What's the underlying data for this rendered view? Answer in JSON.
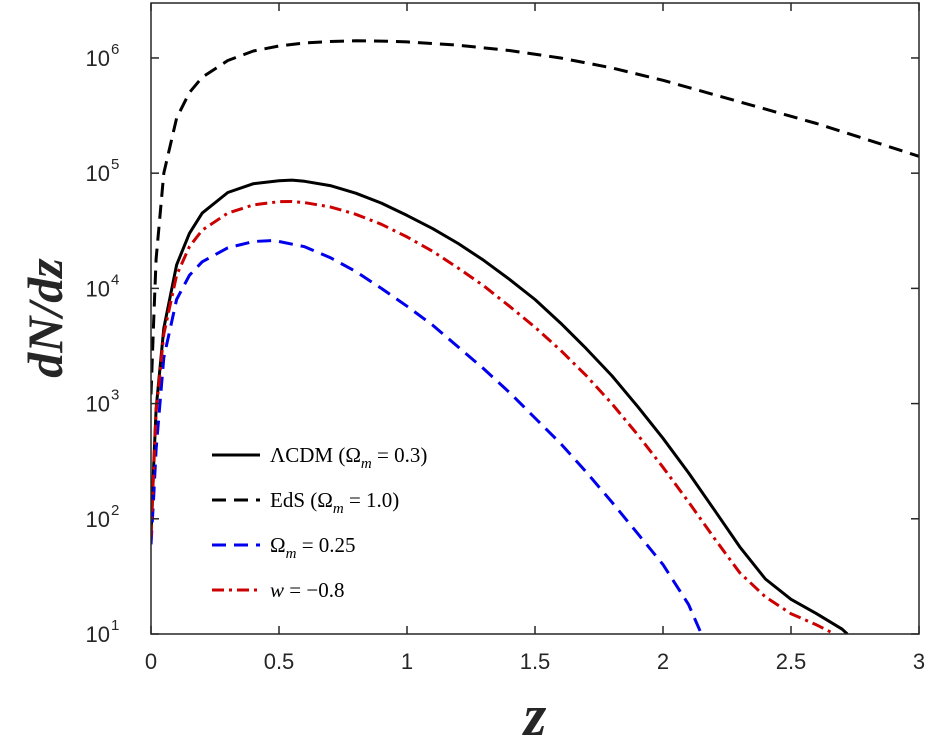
{
  "chart_data": {
    "type": "line",
    "title": "",
    "xlabel": "z",
    "ylabel": "dN/dz",
    "xlim": [
      0,
      3
    ],
    "ylim": [
      10,
      3000000
    ],
    "yscale": "log",
    "grid": false,
    "legend_position": "bottom-left",
    "x_ticks": [
      "0",
      "0.5",
      "1",
      "1.5",
      "2",
      "2.5",
      "3"
    ],
    "y_ticks": [
      {
        "base": "10",
        "exp": "1"
      },
      {
        "base": "10",
        "exp": "2"
      },
      {
        "base": "10",
        "exp": "3"
      },
      {
        "base": "10",
        "exp": "4"
      },
      {
        "base": "10",
        "exp": "5"
      },
      {
        "base": "10",
        "exp": "6"
      }
    ],
    "series": [
      {
        "name": "ΛCDM (Ωm = 0.3)",
        "legend": {
          "main": "ΛCDM (Ω",
          "sub": "m",
          "tail": " = 0.3)"
        },
        "color": "#000000",
        "dash": "solid",
        "x": [
          0.0,
          0.01,
          0.02,
          0.05,
          0.1,
          0.15,
          0.2,
          0.3,
          0.4,
          0.5,
          0.55,
          0.6,
          0.7,
          0.8,
          0.9,
          1.0,
          1.1,
          1.2,
          1.3,
          1.4,
          1.5,
          1.6,
          1.7,
          1.8,
          1.9,
          2.0,
          2.1,
          2.2,
          2.3,
          2.4,
          2.5,
          2.6,
          2.7,
          2.72
        ],
        "y": [
          70,
          280,
          900,
          4500,
          16000,
          30000,
          45000,
          68000,
          81000,
          86000,
          87000,
          85000,
          78000,
          67000,
          55000,
          43000,
          33000,
          24500,
          17500,
          12000,
          8000,
          5000,
          3000,
          1750,
          950,
          500,
          250,
          120,
          57,
          30,
          20,
          15,
          11,
          10
        ]
      },
      {
        "name": "EdS (Ωm = 1.0)",
        "legend": {
          "main": "EdS (Ω",
          "sub": "m",
          "tail": " = 1.0)"
        },
        "color": "#000000",
        "dash": "dashed",
        "x": [
          0.0,
          0.01,
          0.02,
          0.05,
          0.1,
          0.15,
          0.2,
          0.3,
          0.4,
          0.5,
          0.6,
          0.7,
          0.8,
          0.9,
          1.0,
          1.2,
          1.4,
          1.6,
          1.8,
          2.0,
          2.2,
          2.4,
          2.6,
          2.8,
          3.0
        ],
        "y": [
          1200,
          5000,
          18000,
          100000,
          300000,
          500000,
          680000,
          950000,
          1150000,
          1270000,
          1350000,
          1390000,
          1410000,
          1400000,
          1380000,
          1290000,
          1160000,
          1000000,
          820000,
          640000,
          480000,
          360000,
          270000,
          195000,
          140000
        ]
      },
      {
        "name": "Ωm = 0.25",
        "legend": {
          "main": "Ω",
          "sub": "m",
          "tail": " = 0.25"
        },
        "color": "#0000ee",
        "dash": "dashed",
        "x": [
          0.0,
          0.01,
          0.02,
          0.05,
          0.1,
          0.15,
          0.2,
          0.3,
          0.4,
          0.47,
          0.5,
          0.6,
          0.7,
          0.8,
          0.9,
          1.0,
          1.1,
          1.2,
          1.3,
          1.4,
          1.5,
          1.6,
          1.7,
          1.8,
          1.9,
          2.0,
          2.1,
          2.15
        ],
        "y": [
          60,
          150,
          400,
          2500,
          8000,
          13000,
          17000,
          22500,
          25500,
          26000,
          25500,
          23000,
          18500,
          14000,
          10000,
          7000,
          4800,
          3100,
          2000,
          1250,
          750,
          450,
          255,
          140,
          75,
          40,
          18,
          10
        ]
      },
      {
        "name": "w = −0.8",
        "legend": {
          "main": "w",
          "sub": "",
          "tail": " = −0.8"
        },
        "color": "#cc0000",
        "dash": "dashdot",
        "x": [
          0.0,
          0.01,
          0.02,
          0.05,
          0.1,
          0.15,
          0.2,
          0.3,
          0.4,
          0.5,
          0.55,
          0.6,
          0.7,
          0.8,
          0.9,
          1.0,
          1.1,
          1.2,
          1.3,
          1.4,
          1.5,
          1.6,
          1.7,
          1.8,
          1.9,
          2.0,
          2.1,
          2.2,
          2.3,
          2.4,
          2.5,
          2.6,
          2.67
        ],
        "y": [
          70,
          260,
          850,
          4000,
          13000,
          23000,
          32000,
          45000,
          53000,
          56500,
          56800,
          55500,
          51000,
          44000,
          36000,
          28000,
          21000,
          15000,
          10500,
          7000,
          4600,
          2900,
          1750,
          1000,
          540,
          280,
          140,
          68,
          34,
          21,
          15,
          12,
          10
        ]
      }
    ]
  }
}
